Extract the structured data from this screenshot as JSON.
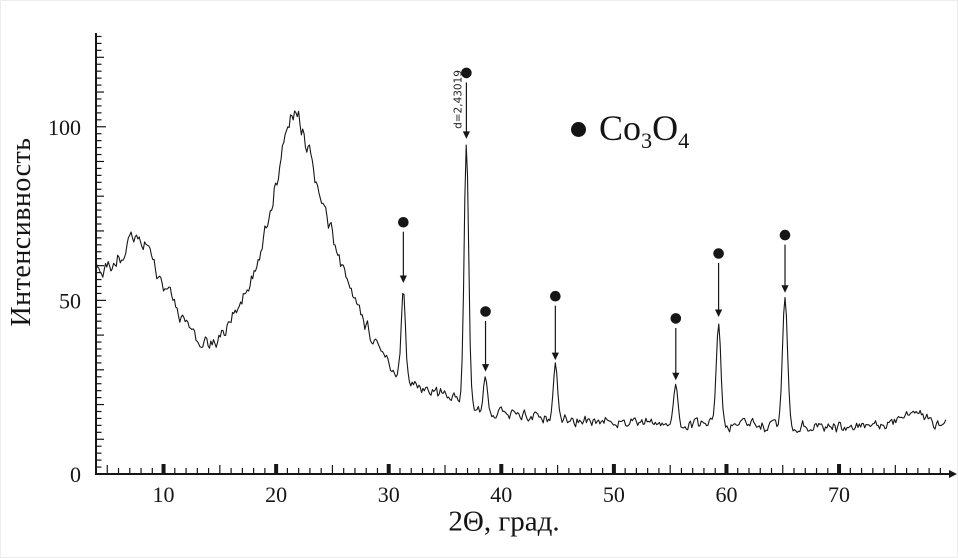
{
  "figure": {
    "background": "#ffffff",
    "ink_color": "#161616"
  },
  "chart_data": {
    "type": "line",
    "title": "",
    "xlabel": "2Θ, град.",
    "ylabel": "Интенсивность",
    "xlim": [
      4,
      79.5
    ],
    "ylim": [
      0,
      127
    ],
    "grid": false,
    "x_major_ticks": [
      10,
      20,
      30,
      40,
      50,
      60,
      70
    ],
    "x_minor_step": 1,
    "x_medium_step": 5,
    "y_tick_labels": [
      0,
      50,
      100
    ],
    "y_minor_step": 2,
    "y_medium_step": 10,
    "x_axis_end_arrow": true,
    "legend": {
      "position": "inside-upper-right",
      "marker": "filled-circle",
      "formula_parts": [
        {
          "t": "Co"
        },
        {
          "t": "3",
          "sub": true
        },
        {
          "t": "O"
        },
        {
          "t": "4",
          "sub": true
        }
      ]
    },
    "background_curve": [
      [
        4,
        60
      ],
      [
        4.6,
        58
      ],
      [
        5.2,
        60
      ],
      [
        6,
        62
      ],
      [
        6.8,
        65
      ],
      [
        7.6,
        70
      ],
      [
        8.4,
        66
      ],
      [
        9.2,
        60
      ],
      [
        10,
        55
      ],
      [
        10.8,
        50
      ],
      [
        11.6,
        45
      ],
      [
        12.4,
        41
      ],
      [
        13.2,
        38
      ],
      [
        14,
        37
      ],
      [
        14.8,
        38.5
      ],
      [
        15.6,
        42
      ],
      [
        16.4,
        47
      ],
      [
        17.2,
        52
      ],
      [
        18,
        58
      ],
      [
        18.8,
        66
      ],
      [
        19.6,
        78
      ],
      [
        20.4,
        90
      ],
      [
        21,
        99
      ],
      [
        21.6,
        106
      ],
      [
        22.2,
        101
      ],
      [
        22.8,
        94
      ],
      [
        23.6,
        83
      ],
      [
        24.4,
        74
      ],
      [
        25.2,
        67
      ],
      [
        26,
        58
      ],
      [
        26.8,
        51
      ],
      [
        27.6,
        45
      ],
      [
        28.4,
        40
      ],
      [
        29.2,
        35
      ],
      [
        30,
        32
      ],
      [
        31,
        28.5
      ],
      [
        32,
        26.5
      ],
      [
        33,
        25
      ],
      [
        34,
        23.5
      ],
      [
        35,
        22.5
      ],
      [
        36,
        21.5
      ],
      [
        37,
        20
      ],
      [
        38,
        18.5
      ],
      [
        39,
        17.5
      ],
      [
        40,
        17.5
      ],
      [
        41,
        17
      ],
      [
        42,
        17
      ],
      [
        43,
        16.5
      ],
      [
        44,
        16
      ],
      [
        45,
        16
      ],
      [
        46,
        15.5
      ],
      [
        47,
        15.5
      ],
      [
        48,
        15
      ],
      [
        49,
        15.5
      ],
      [
        50,
        15
      ],
      [
        51,
        15
      ],
      [
        52,
        14.5
      ],
      [
        53,
        15
      ],
      [
        54,
        14.5
      ],
      [
        55,
        14.5
      ],
      [
        56,
        14
      ],
      [
        57,
        14.5
      ],
      [
        58,
        14
      ],
      [
        59,
        14.5
      ],
      [
        60,
        14
      ],
      [
        61,
        14
      ],
      [
        62,
        14.5
      ],
      [
        63,
        14
      ],
      [
        64,
        14
      ],
      [
        65,
        14
      ],
      [
        66,
        13.5
      ],
      [
        67,
        14
      ],
      [
        68,
        13.5
      ],
      [
        69,
        14
      ],
      [
        70,
        13.5
      ],
      [
        71,
        14
      ],
      [
        72,
        14
      ],
      [
        73,
        14.5
      ],
      [
        74,
        14
      ],
      [
        75,
        15
      ],
      [
        75.8,
        16.5
      ],
      [
        76.6,
        20
      ],
      [
        77.2,
        18
      ],
      [
        77.8,
        15.5
      ],
      [
        78.6,
        14.5
      ],
      [
        79.5,
        15.5
      ]
    ],
    "diffraction_peaks": [
      {
        "two_theta": 31.3,
        "height": 25,
        "sigma": 0.18
      },
      {
        "two_theta": 36.9,
        "height": 75,
        "sigma": 0.2,
        "annotation": "d=2,43019"
      },
      {
        "two_theta": 38.6,
        "height": 10.5,
        "sigma": 0.18
      },
      {
        "two_theta": 44.8,
        "height": 16,
        "sigma": 0.18
      },
      {
        "two_theta": 55.5,
        "height": 11.5,
        "sigma": 0.2
      },
      {
        "two_theta": 59.3,
        "height": 29,
        "sigma": 0.2
      },
      {
        "two_theta": 65.2,
        "height": 37,
        "sigma": 0.22
      }
    ],
    "peak_markers": [
      {
        "two_theta": 31.3,
        "dot_y": 72.5,
        "arrow_tip_y": 55
      },
      {
        "two_theta": 36.9,
        "dot_y": 115.5,
        "arrow_tip_y": 96.5
      },
      {
        "two_theta": 38.6,
        "dot_y": 46.8,
        "arrow_tip_y": 29.5
      },
      {
        "two_theta": 44.8,
        "dot_y": 51.2,
        "arrow_tip_y": 32.8
      },
      {
        "two_theta": 55.5,
        "dot_y": 44.8,
        "arrow_tip_y": 27
      },
      {
        "two_theta": 59.3,
        "dot_y": 63.5,
        "arrow_tip_y": 45.2
      },
      {
        "two_theta": 65.2,
        "dot_y": 68.8,
        "arrow_tip_y": 52.2
      }
    ],
    "noise": {
      "seed": 20,
      "base_amplitude": 1.75,
      "relative_amplitude": 0.02
    }
  }
}
